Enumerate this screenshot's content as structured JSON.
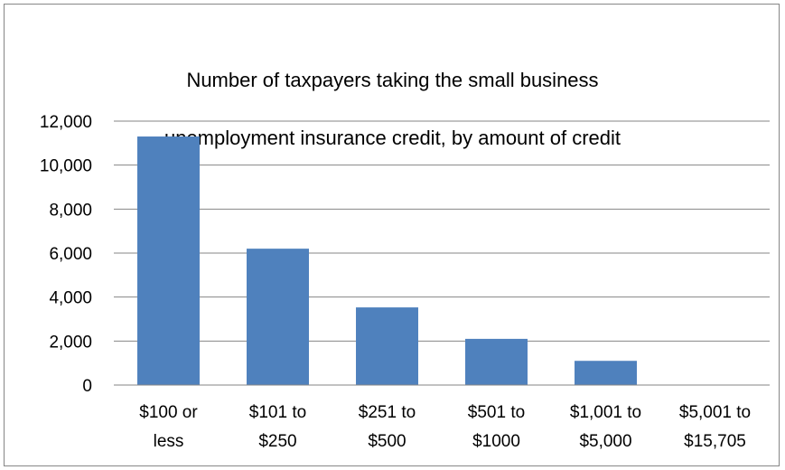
{
  "chart_data": {
    "type": "bar",
    "title_lines": [
      "Number of taxpayers taking the small business",
      "unemployment insurance credit, by amount of credit"
    ],
    "categories": [
      [
        "$100 or",
        "less"
      ],
      [
        "$101 to",
        "$250"
      ],
      [
        "$251 to",
        "$500"
      ],
      [
        "$501 to",
        "$1000"
      ],
      [
        "$1,001 to",
        "$5,000"
      ],
      [
        "$5,001 to",
        "$15,705"
      ]
    ],
    "values": [
      11300,
      6200,
      3530,
      2100,
      1100,
      0
    ],
    "ylim": [
      0,
      12000
    ],
    "yticks": [
      "0",
      "2,000",
      "4,000",
      "6,000",
      "8,000",
      "10,000",
      "12,000"
    ],
    "ytick_values": [
      0,
      2000,
      4000,
      6000,
      8000,
      10000,
      12000
    ],
    "grid": true,
    "legend": "none",
    "bar_color": "#4f81bd",
    "grid_color": "#868686"
  }
}
